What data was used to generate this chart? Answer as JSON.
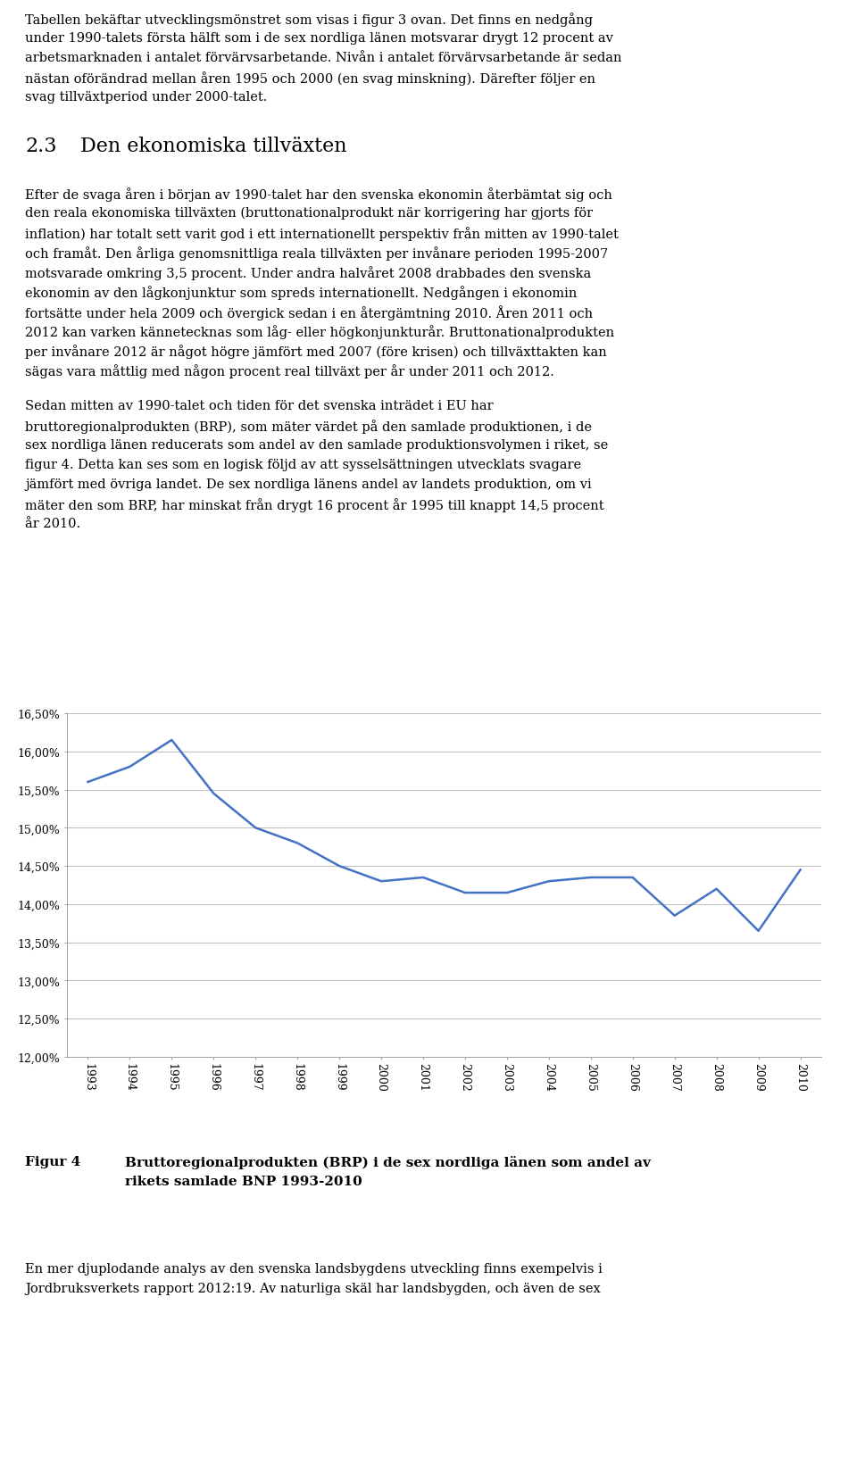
{
  "years": [
    1993,
    1994,
    1995,
    1996,
    1997,
    1998,
    1999,
    2000,
    2001,
    2002,
    2003,
    2004,
    2005,
    2006,
    2007,
    2008,
    2009,
    2010
  ],
  "values": [
    0.156,
    0.158,
    0.1615,
    0.1545,
    0.15,
    0.148,
    0.145,
    0.143,
    0.1435,
    0.1415,
    0.1415,
    0.143,
    0.1435,
    0.1435,
    0.1385,
    0.142,
    0.1365,
    0.1445
  ],
  "line_color": "#4472C4",
  "line_width": 1.8,
  "ylim_min": 0.12,
  "ylim_max": 0.165,
  "yticks": [
    0.12,
    0.125,
    0.13,
    0.135,
    0.14,
    0.145,
    0.15,
    0.155,
    0.16,
    0.165
  ],
  "ytick_labels": [
    "12,00%",
    "12,50%",
    "13,00%",
    "13,50%",
    "14,00%",
    "14,50%",
    "15,00%",
    "15,50%",
    "16,00%",
    "16,50%"
  ],
  "grid_color": "#C0C0C0",
  "grid_linewidth": 0.8,
  "background_color": "#FFFFFF",
  "figcaption_label": "Figur 4",
  "figcaption_text_line1": "Bruttoregionalprodukten (BRP) i de sex nordliga länen som andel av",
  "figcaption_text_line2": "rikets samlade BNP 1993-2010",
  "font_size_body": 10.5,
  "font_size_ticks": 9,
  "font_size_caption_label": 11,
  "font_size_caption_text": 11,
  "font_size_heading": 16,
  "heading_number": "2.3",
  "heading_text": "Den ekonomiska tillväxten",
  "para1_lines": [
    "Tabellen bekäftar utvecklingsmönstret som visas i figur 3 ovan. Det finns en nedgång",
    "under 1990-talets första hälft som i de sex nordliga länen motsvarar drygt 12 procent av",
    "arbetsmarknaden i antalet förvärvsarbetande. Nivån i antalet förvärvsarbetande är sedan",
    "nästan oförändrad mellan åren 1995 och 2000 (en svag minskning). Därefter följer en",
    "svag tillväxtperiod under 2000-talet."
  ],
  "para2_lines": [
    "Efter de svaga åren i början av 1990-talet har den svenska ekonomin återbämtat sig och",
    "den reala ekonomiska tillväxten (bruttonationalprodukt när korrigering har gjorts för",
    "inflation) har totalt sett varit god i ett internationellt perspektiv från mitten av 1990-talet",
    "och framåt. Den årliga genomsnittliga reala tillväxten per invånare perioden 1995-2007",
    "motsvarade omkring 3,5 procent. Under andra halvåret 2008 drabbades den svenska",
    "ekonomin av den lågkonjunktur som spreds internationellt. Nedgången i ekonomin",
    "fortsätte under hela 2009 och övergick sedan i en återgämtning 2010. Åren 2011 och",
    "2012 kan varken kännetecknas som låg- eller högkonjunkturår. Bruttonationalprodukten",
    "per invånare 2012 är något högre jämfört med 2007 (före krisen) och tillväxttakten kan",
    "sägas vara måttlig med någon procent real tillväxt per år under 2011 och 2012."
  ],
  "para3_lines": [
    "Sedan mitten av 1990-talet och tiden för det svenska inträdet i EU har",
    "bruttoregionalprodukten (BRP), som mäter värdet på den samlade produktionen, i de",
    "sex nordliga länen reducerats som andel av den samlade produktionsvolymen i riket, se",
    "figur 4. Detta kan ses som en logisk följd av att sysselsättningen utvecklats svagare",
    "jämfört med övriga landet. De sex nordliga länens andel av landets produktion, om vi",
    "mäter den som BRP, har minskat från drygt 16 procent år 1995 till knappt 14,5 procent",
    "år 2010."
  ],
  "para4_lines": [
    "En mer djuplodande analys av den svenska landsbygdens utveckling finns exempelvis i",
    "Jordbruksverkets rapport 2012:19. Av naturliga skäl har landsbygden, och även de sex"
  ]
}
